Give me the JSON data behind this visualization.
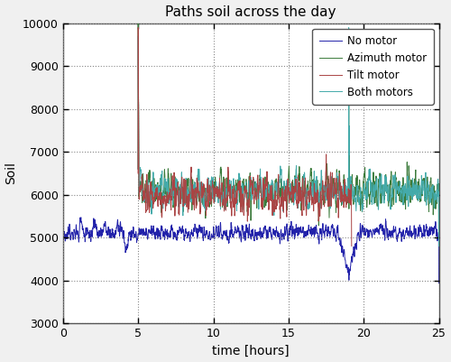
{
  "title": "Paths soil across the day",
  "xlabel": "time [hours]",
  "ylabel": "Soil",
  "xlim": [
    0,
    25
  ],
  "ylim": [
    3000,
    10000
  ],
  "yticks": [
    3000,
    4000,
    5000,
    6000,
    7000,
    8000,
    9000,
    10000
  ],
  "xticks": [
    0,
    5,
    10,
    15,
    20,
    25
  ],
  "legend_labels": [
    "No motor",
    "Azimuth motor",
    "Tilt motor",
    "Both motors"
  ],
  "colors": {
    "no_motor": "#2222AA",
    "azimuth": "#3A7A3A",
    "tilt": "#AA4444",
    "both": "#44AAAA"
  },
  "seed": 42,
  "n_points": 2000,
  "figsize": [
    5.0,
    4.01
  ],
  "dpi": 100
}
